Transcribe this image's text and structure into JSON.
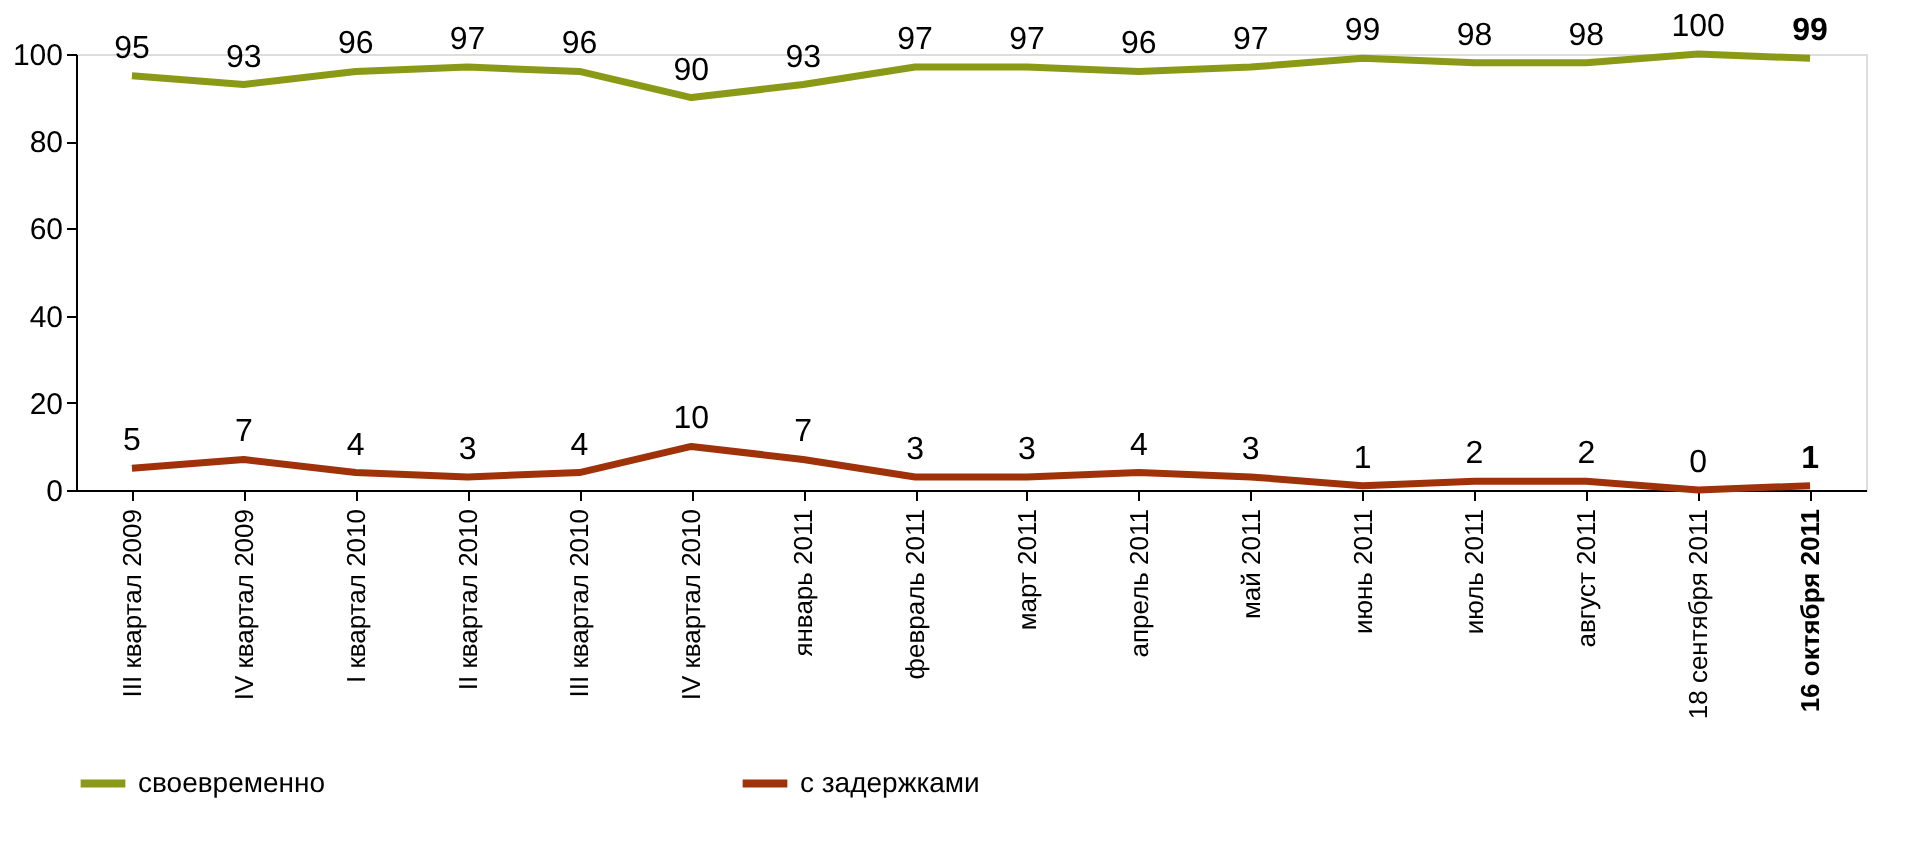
{
  "chart_data": {
    "type": "line",
    "categories": [
      "III квартал 2009",
      "IV квартал 2009",
      "I квартал 2010",
      "II квартал 2010",
      "III квартал 2010",
      "IV квартал 2010",
      "январь 2011",
      "февраль 2011",
      "март 2011",
      "апрель 2011",
      "май 2011",
      "июнь 2011",
      "июль 2011",
      "август 2011",
      "18 сентября 2011",
      "16 октября 2011"
    ],
    "series": [
      {
        "name": "своевременно",
        "color": "#8a9a16",
        "values": [
          95,
          93,
          96,
          97,
          96,
          90,
          93,
          97,
          97,
          96,
          97,
          99,
          98,
          98,
          100,
          99
        ]
      },
      {
        "name": "с задержками",
        "color": "#a0320a",
        "values": [
          5,
          7,
          4,
          3,
          4,
          10,
          7,
          3,
          3,
          4,
          3,
          1,
          2,
          2,
          0,
          1
        ]
      }
    ],
    "ylim": [
      0,
      100
    ],
    "yticks": [
      0,
      20,
      40,
      60,
      80,
      100
    ],
    "grid": false,
    "legend": "bottom",
    "data_labels": true,
    "marker": "none",
    "line_style": "solid"
  }
}
